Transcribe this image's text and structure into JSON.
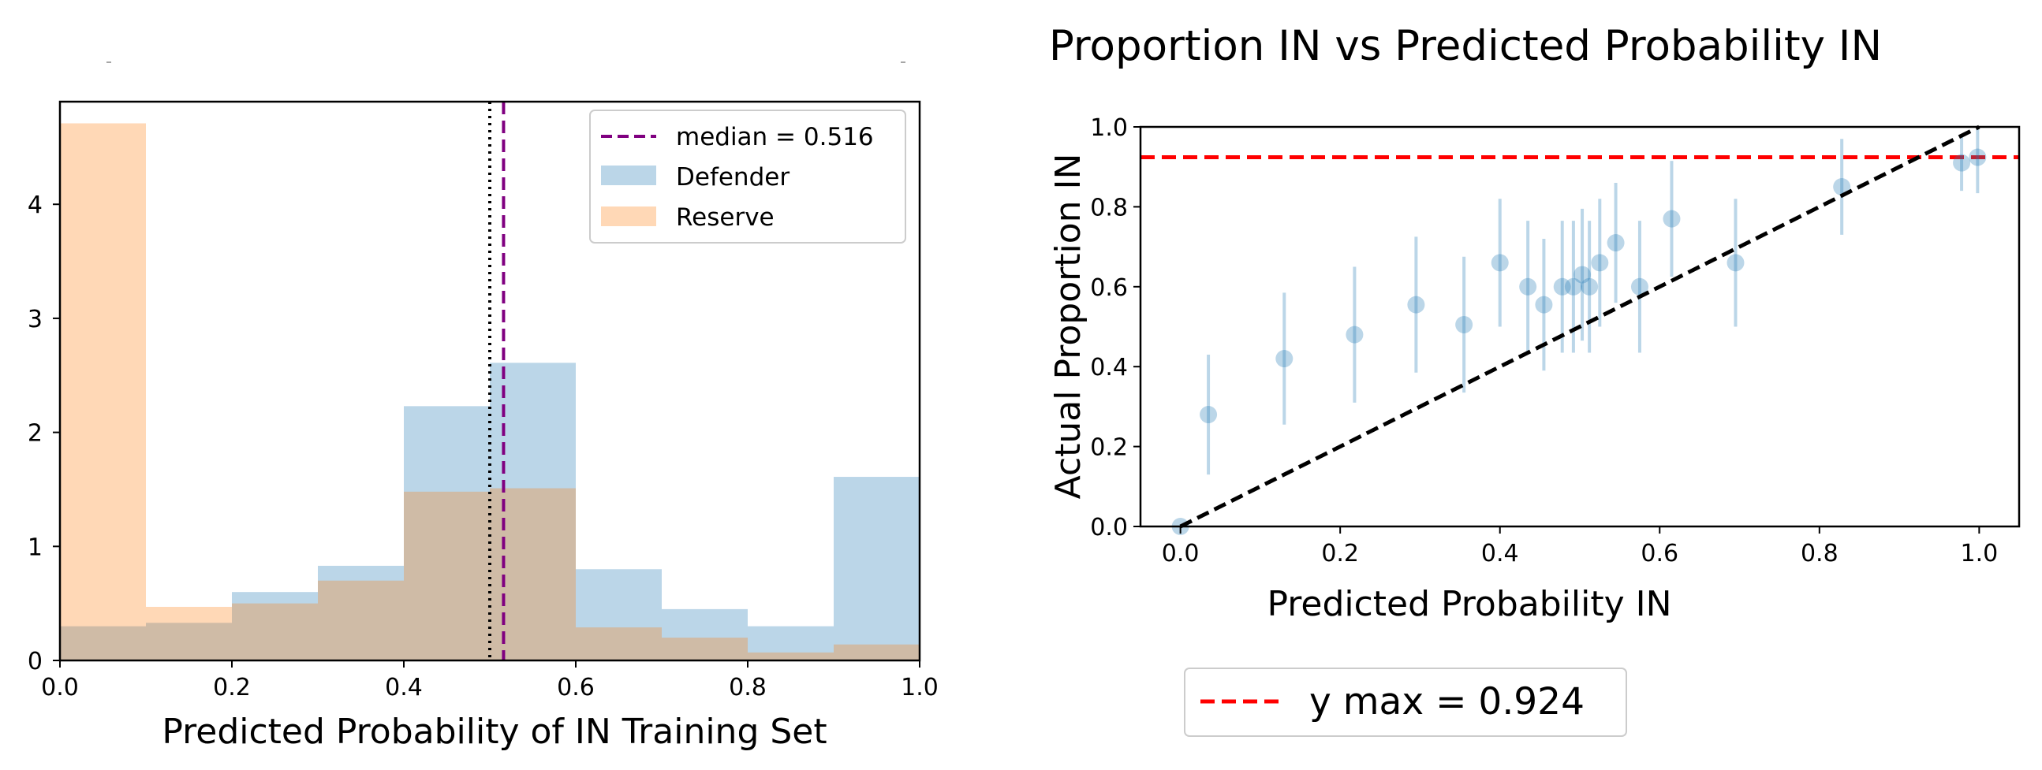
{
  "chart_data": [
    {
      "type": "histogram",
      "title": "",
      "xlabel": "Predicted Probability of IN Training Set",
      "ylabel": "",
      "xlim": [
        0.0,
        1.0
      ],
      "ylim": [
        0,
        4.9
      ],
      "xticks": [
        0.0,
        0.2,
        0.4,
        0.6,
        0.8,
        1.0
      ],
      "xtick_labels": [
        "0.0",
        "0.2",
        "0.4",
        "0.6",
        "0.8",
        "1.0"
      ],
      "yticks": [
        0,
        1,
        2,
        3,
        4
      ],
      "ytick_labels": [
        "0",
        "1",
        "2",
        "3",
        "4"
      ],
      "bin_edges": [
        0.0,
        0.1,
        0.2,
        0.3,
        0.4,
        0.5,
        0.6,
        0.7,
        0.8,
        0.9,
        1.0
      ],
      "series": [
        {
          "name": "Defender",
          "color": "#1f77b4",
          "values": [
            0.3,
            0.33,
            0.6,
            0.83,
            2.23,
            2.61,
            0.8,
            0.45,
            0.3,
            1.61
          ]
        },
        {
          "name": "Reserve",
          "color": "#ff7f0e",
          "values": [
            4.71,
            0.47,
            0.5,
            0.7,
            1.48,
            1.51,
            0.29,
            0.2,
            0.07,
            0.14
          ]
        }
      ],
      "vlines": [
        {
          "name": "median",
          "x": 0.516,
          "color": "#800080",
          "style": "dashed",
          "label": "median = 0.516"
        },
        {
          "name": "threshold",
          "x": 0.5,
          "color": "#000000",
          "style": "dotted"
        }
      ],
      "legend": {
        "position": "top-right",
        "entries": [
          "median = 0.516",
          "Defender",
          "Reserve"
        ]
      }
    },
    {
      "type": "scatter",
      "title": "Proportion IN vs Predicted Probability IN",
      "xlabel": "Predicted Probability IN",
      "ylabel": "Actual Proportion IN",
      "xlim": [
        -0.05,
        1.05
      ],
      "ylim": [
        0.0,
        1.0
      ],
      "xticks": [
        0.0,
        0.2,
        0.4,
        0.6,
        0.8,
        1.0
      ],
      "xtick_labels": [
        "0.0",
        "0.2",
        "0.4",
        "0.6",
        "0.8",
        "1.0"
      ],
      "yticks": [
        0.0,
        0.2,
        0.4,
        0.6,
        0.8,
        1.0
      ],
      "ytick_labels": [
        "0.0",
        "0.2",
        "0.4",
        "0.6",
        "0.8",
        "1.0"
      ],
      "points": [
        {
          "x": 0.0,
          "y": 0.0,
          "err": 0.0
        },
        {
          "x": 0.035,
          "y": 0.28,
          "err": 0.15
        },
        {
          "x": 0.13,
          "y": 0.42,
          "err": 0.165
        },
        {
          "x": 0.218,
          "y": 0.48,
          "err": 0.17
        },
        {
          "x": 0.295,
          "y": 0.555,
          "err": 0.17
        },
        {
          "x": 0.355,
          "y": 0.505,
          "err": 0.17
        },
        {
          "x": 0.4,
          "y": 0.66,
          "err": 0.16
        },
        {
          "x": 0.435,
          "y": 0.6,
          "err": 0.165
        },
        {
          "x": 0.455,
          "y": 0.555,
          "err": 0.165
        },
        {
          "x": 0.478,
          "y": 0.6,
          "err": 0.165
        },
        {
          "x": 0.492,
          "y": 0.6,
          "err": 0.165
        },
        {
          "x": 0.503,
          "y": 0.63,
          "err": 0.165
        },
        {
          "x": 0.512,
          "y": 0.6,
          "err": 0.165
        },
        {
          "x": 0.525,
          "y": 0.66,
          "err": 0.16
        },
        {
          "x": 0.545,
          "y": 0.71,
          "err": 0.15
        },
        {
          "x": 0.575,
          "y": 0.6,
          "err": 0.165
        },
        {
          "x": 0.615,
          "y": 0.77,
          "err": 0.145
        },
        {
          "x": 0.695,
          "y": 0.66,
          "err": 0.16
        },
        {
          "x": 0.828,
          "y": 0.85,
          "err": 0.12
        },
        {
          "x": 0.978,
          "y": 0.91,
          "err": 0.07
        },
        {
          "x": 0.998,
          "y": 0.924,
          "err": 0.09
        }
      ],
      "reference_line": {
        "from": [
          0.0,
          0.0
        ],
        "to": [
          1.0,
          1.0
        ],
        "color": "#000000",
        "style": "dashed"
      },
      "hline": {
        "y": 0.924,
        "color": "#ff0000",
        "style": "dashed",
        "label": "y max = 0.924"
      },
      "legend": {
        "position": "bottom-left-outside",
        "entries": [
          "y max = 0.924"
        ]
      }
    }
  ]
}
